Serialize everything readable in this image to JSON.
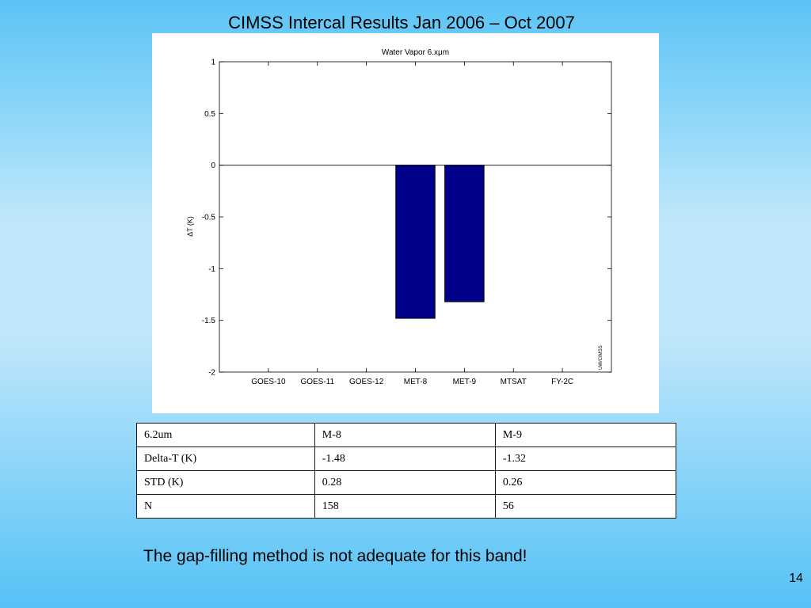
{
  "slide": {
    "title": "CIMSS Intercal Results Jan 2006 – Oct 2007",
    "footnote": "The gap-filling method is not adequate for this band!",
    "page_number": "14"
  },
  "chart_data": {
    "type": "bar",
    "title": "Water Vapor 6.xμm",
    "xlabel": "",
    "ylabel": "ΔT (K)",
    "categories": [
      "GOES-10",
      "GOES-11",
      "GOES-12",
      "MET-8",
      "MET-9",
      "MTSAT",
      "FY-2C"
    ],
    "values": [
      null,
      null,
      null,
      -1.48,
      -1.32,
      null,
      null
    ],
    "ylim": [
      -2,
      1
    ],
    "yticks": [
      "1",
      "0.5",
      "0",
      "-0.5",
      "-1",
      "-1.5",
      "-2"
    ],
    "watermark": "UW/CIMSS",
    "bar_color": "#00008b",
    "grid": false
  },
  "table": {
    "rows": [
      [
        "6.2um",
        "M-8",
        "M-9"
      ],
      [
        "Delta-T (K)",
        "-1.48",
        "-1.32"
      ],
      [
        "STD (K)",
        "0.28",
        "0.26"
      ],
      [
        "N",
        "158",
        "56"
      ]
    ]
  }
}
